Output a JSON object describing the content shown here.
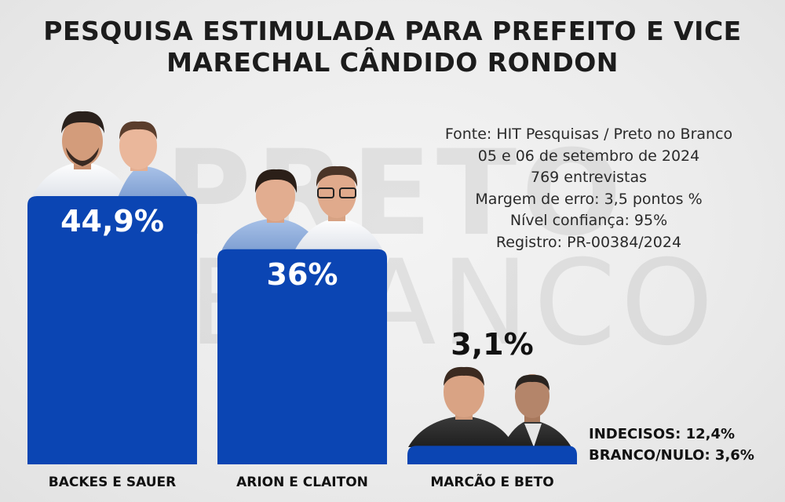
{
  "header": {
    "title_line1": "PESQUISA ESTIMULADA PARA PREFEITO E VICE",
    "title_line2": "MARECHAL CÂNDIDO RONDON"
  },
  "watermark": {
    "line1": "PRETO",
    "line2": "BRANCO"
  },
  "source": {
    "line1": "Fonte: HIT Pesquisas / Preto no Branco",
    "line2": "05 e 06 de setembro de 2024",
    "line3": "769 entrevistas",
    "line4": "Margem de erro: 3,5 pontos %",
    "line5": "Nível confiança: 95%",
    "line6": "Registro: PR-00384/2024"
  },
  "extras": {
    "undecided": "INDECISOS: 12,4%",
    "blank_null": "BRANCO/NULO: 3,6%"
  },
  "colors": {
    "bar": "#0b45b3",
    "bar_label": "#ffffff",
    "outside_label": "#111111",
    "category_label": "#111111"
  },
  "chart_data": {
    "type": "bar",
    "title": "PESQUISA ESTIMULADA PARA PREFEITO E VICE",
    "xlabel": "",
    "ylabel": "",
    "categories": [
      "BACKES E SAUER",
      "ARION E CLAITON",
      "MARCÃO E BETO"
    ],
    "values": [
      44.9,
      36,
      3.1
    ],
    "value_labels": [
      "44,9%",
      "36%",
      "3,1%"
    ],
    "ylim": [
      0,
      45
    ],
    "grid": false,
    "legend": "none"
  }
}
